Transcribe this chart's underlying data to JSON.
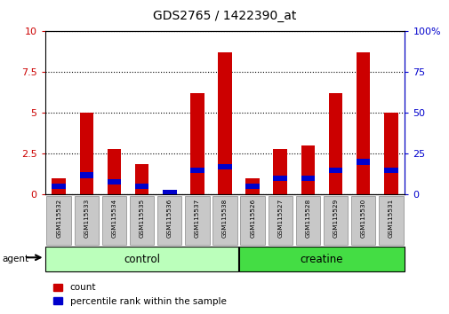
{
  "title": "GDS2765 / 1422390_at",
  "samples": [
    "GSM115532",
    "GSM115533",
    "GSM115534",
    "GSM115535",
    "GSM115536",
    "GSM115537",
    "GSM115538",
    "GSM115526",
    "GSM115527",
    "GSM115528",
    "GSM115529",
    "GSM115530",
    "GSM115531"
  ],
  "red_values": [
    1.0,
    5.0,
    2.8,
    1.9,
    0.05,
    6.2,
    8.7,
    1.0,
    2.8,
    3.0,
    6.2,
    8.7,
    5.0
  ],
  "blue_values_pct": [
    5,
    12,
    8,
    5,
    1,
    15,
    17,
    5,
    10,
    10,
    15,
    20,
    15
  ],
  "left_ylim": [
    0,
    10
  ],
  "right_ylim": [
    0,
    100
  ],
  "left_yticks": [
    0,
    2.5,
    5,
    7.5,
    10
  ],
  "right_yticks": [
    0,
    25,
    50,
    75,
    100
  ],
  "left_ytick_labels": [
    "0",
    "2.5",
    "5",
    "7.5",
    "10"
  ],
  "right_ytick_labels": [
    "0",
    "25",
    "50",
    "75",
    "100%"
  ],
  "red_color": "#cc0000",
  "blue_color": "#0000cc",
  "bar_width": 0.5,
  "bg_plot": "#ffffff",
  "tick_bg": "#c8c8c8",
  "control_color": "#bbffbb",
  "creatine_color": "#44dd44",
  "n_control": 7,
  "n_creatine": 6,
  "legend_count": "count",
  "legend_pct": "percentile rank within the sample"
}
